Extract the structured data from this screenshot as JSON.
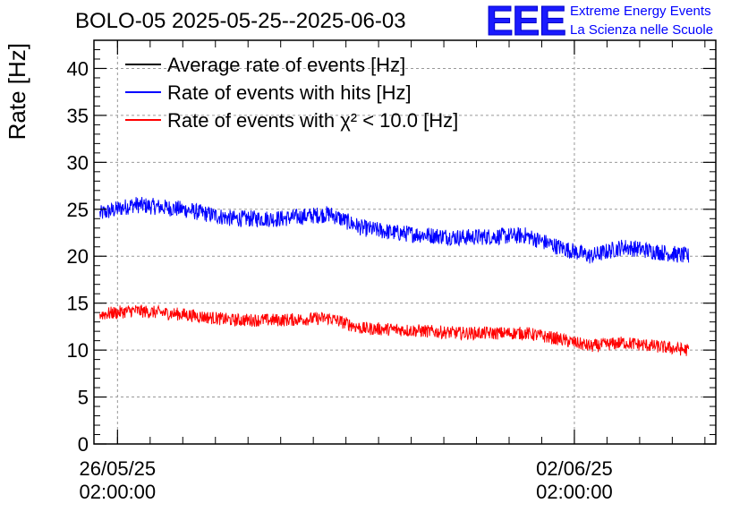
{
  "header": {
    "title": "BOLO-05 2025-05-25--2025-06-03",
    "logo_text": "EEE",
    "org_line1": "Extreme Energy Events",
    "org_line2": "La Scienza nelle Scuole"
  },
  "chart_data": {
    "type": "line",
    "title": "BOLO-05 2025-05-25--2025-06-03",
    "xlabel": "",
    "ylabel": "Rate [Hz]",
    "ylim": [
      0,
      43
    ],
    "yticks": [
      0,
      5,
      10,
      15,
      20,
      25,
      30,
      35,
      40
    ],
    "xlim": [
      "2025-05-25 17:20:00",
      "2025-06-04 06:00:00"
    ],
    "xticks": [
      {
        "time": "2025-05-26 02:00:00",
        "date_label": "26/05/25",
        "time_label": "02:00:00"
      },
      {
        "time": "2025-06-02 02:00:00",
        "date_label": "02/06/25",
        "time_label": "02:00:00"
      }
    ],
    "grid": true,
    "legend_position": "top-left",
    "series": [
      {
        "name": "Average rate of events [Hz]",
        "color": "#000000",
        "x": [],
        "values": []
      },
      {
        "name": "Rate of events with hits [Hz]",
        "color": "#0000ff",
        "noise_amplitude": 0.9,
        "x": [
          "2025-05-25 19:30",
          "2025-05-26 08:00",
          "2025-05-27 02:00",
          "2025-05-27 20:00",
          "2025-05-28 14:00",
          "2025-05-29 08:00",
          "2025-05-29 20:00",
          "2025-05-30 08:00",
          "2025-05-31 08:00",
          "2025-06-01 08:00",
          "2025-06-01 20:00",
          "2025-06-02 08:00",
          "2025-06-02 20:00",
          "2025-06-03 20:00"
        ],
        "values": [
          24.5,
          25.5,
          25.0,
          24.0,
          24.0,
          24.5,
          23.0,
          22.5,
          22.0,
          22.2,
          21.0,
          20.0,
          21.0,
          20.0
        ]
      },
      {
        "name": "Rate of events with χ² < 10.0 [Hz]",
        "color": "#ff0000",
        "noise_amplitude": 0.7,
        "x": [
          "2025-05-25 19:30",
          "2025-05-26 08:00",
          "2025-05-27 02:00",
          "2025-05-27 20:00",
          "2025-05-28 14:00",
          "2025-05-29 08:00",
          "2025-05-29 20:00",
          "2025-05-30 08:00",
          "2025-05-31 08:00",
          "2025-06-01 08:00",
          "2025-06-01 20:00",
          "2025-06-02 08:00",
          "2025-06-02 20:00",
          "2025-06-03 20:00"
        ],
        "values": [
          13.8,
          14.2,
          13.8,
          13.2,
          13.2,
          13.4,
          12.3,
          12.2,
          11.8,
          11.8,
          11.2,
          10.4,
          10.8,
          10.0
        ]
      }
    ]
  }
}
